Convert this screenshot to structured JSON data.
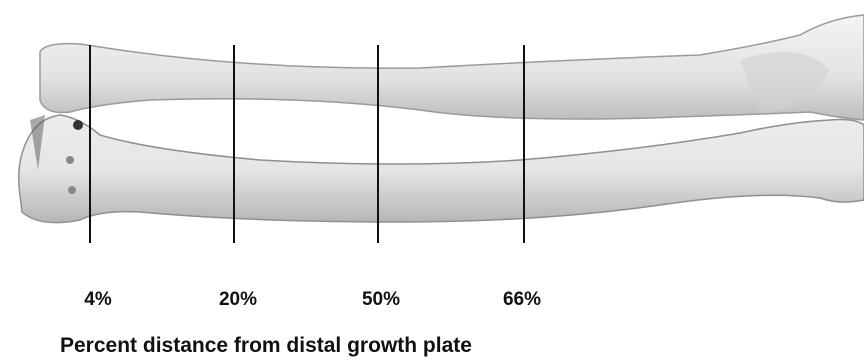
{
  "markers": [
    {
      "label": "4%"
    },
    {
      "label": "20%"
    },
    {
      "label": "50%"
    },
    {
      "label": "66%"
    }
  ],
  "caption": "Percent distance from distal growth plate"
}
